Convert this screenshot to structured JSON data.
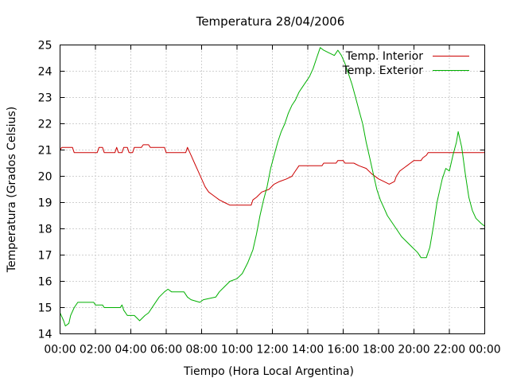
{
  "chart_data": {
    "type": "line",
    "title": "Temperatura 28/04/2006",
    "xlabel": "Tiempo (Hora Local Argentina)",
    "ylabel": "Temperatura (Grados Celsius)",
    "xlim": [
      0,
      24
    ],
    "ylim": [
      14,
      25
    ],
    "x_ticks": [
      "00:00",
      "02:00",
      "04:00",
      "06:00",
      "08:00",
      "10:00",
      "12:00",
      "14:00",
      "16:00",
      "18:00",
      "20:00",
      "22:00",
      "00:00"
    ],
    "y_ticks": [
      "14",
      "15",
      "16",
      "17",
      "18",
      "19",
      "20",
      "21",
      "22",
      "23",
      "24",
      "25"
    ],
    "grid": true,
    "legend_position": "top-right",
    "series": [
      {
        "name": "Temp. Interior",
        "color": "#cc0000",
        "points": [
          [
            0.0,
            21.0
          ],
          [
            0.1,
            21.1
          ],
          [
            0.7,
            21.1
          ],
          [
            0.8,
            20.9
          ],
          [
            2.1,
            20.9
          ],
          [
            2.2,
            21.1
          ],
          [
            2.4,
            21.1
          ],
          [
            2.5,
            20.9
          ],
          [
            3.1,
            20.9
          ],
          [
            3.2,
            21.1
          ],
          [
            3.3,
            20.9
          ],
          [
            3.5,
            20.9
          ],
          [
            3.6,
            21.1
          ],
          [
            3.8,
            21.1
          ],
          [
            3.9,
            20.9
          ],
          [
            4.1,
            20.9
          ],
          [
            4.2,
            21.1
          ],
          [
            4.6,
            21.1
          ],
          [
            4.7,
            21.2
          ],
          [
            5.0,
            21.2
          ],
          [
            5.1,
            21.1
          ],
          [
            5.9,
            21.1
          ],
          [
            6.0,
            20.9
          ],
          [
            7.1,
            20.9
          ],
          [
            7.2,
            21.1
          ],
          [
            7.4,
            20.8
          ],
          [
            7.6,
            20.5
          ],
          [
            7.8,
            20.2
          ],
          [
            8.0,
            19.9
          ],
          [
            8.2,
            19.6
          ],
          [
            8.4,
            19.4
          ],
          [
            8.6,
            19.3
          ],
          [
            8.8,
            19.2
          ],
          [
            9.0,
            19.1
          ],
          [
            9.3,
            19.0
          ],
          [
            9.6,
            18.9
          ],
          [
            9.9,
            18.9
          ],
          [
            10.8,
            18.9
          ],
          [
            10.9,
            19.1
          ],
          [
            11.1,
            19.2
          ],
          [
            11.4,
            19.4
          ],
          [
            11.8,
            19.5
          ],
          [
            12.1,
            19.7
          ],
          [
            12.4,
            19.8
          ],
          [
            12.8,
            19.9
          ],
          [
            13.1,
            20.0
          ],
          [
            13.3,
            20.2
          ],
          [
            13.5,
            20.4
          ],
          [
            14.8,
            20.4
          ],
          [
            14.9,
            20.5
          ],
          [
            15.6,
            20.5
          ],
          [
            15.7,
            20.6
          ],
          [
            16.0,
            20.6
          ],
          [
            16.1,
            20.5
          ],
          [
            16.6,
            20.5
          ],
          [
            16.9,
            20.4
          ],
          [
            17.3,
            20.3
          ],
          [
            17.6,
            20.1
          ],
          [
            18.0,
            19.9
          ],
          [
            18.3,
            19.8
          ],
          [
            18.6,
            19.7
          ],
          [
            18.9,
            19.8
          ],
          [
            19.0,
            20.0
          ],
          [
            19.2,
            20.2
          ],
          [
            19.4,
            20.3
          ],
          [
            19.6,
            20.4
          ],
          [
            19.8,
            20.5
          ],
          [
            20.0,
            20.6
          ],
          [
            20.4,
            20.6
          ],
          [
            20.5,
            20.7
          ],
          [
            20.7,
            20.8
          ],
          [
            20.8,
            20.9
          ],
          [
            21.0,
            20.9
          ],
          [
            24.0,
            20.9
          ]
        ]
      },
      {
        "name": "Temp. Exterior",
        "color": "#00b000",
        "points": [
          [
            0.0,
            14.8
          ],
          [
            0.2,
            14.5
          ],
          [
            0.3,
            14.3
          ],
          [
            0.5,
            14.4
          ],
          [
            0.6,
            14.7
          ],
          [
            0.8,
            15.0
          ],
          [
            1.0,
            15.2
          ],
          [
            1.9,
            15.2
          ],
          [
            2.0,
            15.1
          ],
          [
            2.4,
            15.1
          ],
          [
            2.5,
            15.0
          ],
          [
            3.4,
            15.0
          ],
          [
            3.5,
            15.1
          ],
          [
            3.6,
            14.9
          ],
          [
            3.8,
            14.7
          ],
          [
            4.2,
            14.7
          ],
          [
            4.5,
            14.5
          ],
          [
            4.8,
            14.7
          ],
          [
            5.0,
            14.8
          ],
          [
            5.3,
            15.1
          ],
          [
            5.6,
            15.4
          ],
          [
            5.9,
            15.6
          ],
          [
            6.1,
            15.7
          ],
          [
            6.3,
            15.6
          ],
          [
            7.0,
            15.6
          ],
          [
            7.2,
            15.4
          ],
          [
            7.4,
            15.3
          ],
          [
            7.9,
            15.2
          ],
          [
            8.1,
            15.3
          ],
          [
            8.8,
            15.4
          ],
          [
            9.0,
            15.6
          ],
          [
            9.3,
            15.8
          ],
          [
            9.6,
            16.0
          ],
          [
            10.0,
            16.1
          ],
          [
            10.3,
            16.3
          ],
          [
            10.6,
            16.7
          ],
          [
            10.9,
            17.2
          ],
          [
            11.1,
            17.8
          ],
          [
            11.3,
            18.5
          ],
          [
            11.5,
            19.1
          ],
          [
            11.7,
            19.6
          ],
          [
            11.9,
            20.3
          ],
          [
            12.1,
            20.8
          ],
          [
            12.3,
            21.3
          ],
          [
            12.5,
            21.7
          ],
          [
            12.7,
            22.0
          ],
          [
            12.9,
            22.4
          ],
          [
            13.1,
            22.7
          ],
          [
            13.3,
            22.9
          ],
          [
            13.5,
            23.2
          ],
          [
            13.7,
            23.4
          ],
          [
            13.9,
            23.6
          ],
          [
            14.1,
            23.8
          ],
          [
            14.3,
            24.1
          ],
          [
            14.5,
            24.5
          ],
          [
            14.7,
            24.9
          ],
          [
            14.9,
            24.8
          ],
          [
            15.2,
            24.7
          ],
          [
            15.5,
            24.6
          ],
          [
            15.7,
            24.8
          ],
          [
            15.9,
            24.6
          ],
          [
            16.1,
            24.3
          ],
          [
            16.3,
            23.9
          ],
          [
            16.5,
            23.5
          ],
          [
            16.7,
            23.0
          ],
          [
            16.9,
            22.5
          ],
          [
            17.1,
            22.0
          ],
          [
            17.3,
            21.3
          ],
          [
            17.5,
            20.7
          ],
          [
            17.7,
            20.1
          ],
          [
            17.9,
            19.5
          ],
          [
            18.1,
            19.1
          ],
          [
            18.3,
            18.8
          ],
          [
            18.5,
            18.5
          ],
          [
            18.8,
            18.2
          ],
          [
            19.0,
            18.0
          ],
          [
            19.3,
            17.7
          ],
          [
            19.6,
            17.5
          ],
          [
            19.9,
            17.3
          ],
          [
            20.2,
            17.1
          ],
          [
            20.4,
            16.9
          ],
          [
            20.7,
            16.9
          ],
          [
            20.9,
            17.3
          ],
          [
            21.1,
            18.1
          ],
          [
            21.3,
            19.0
          ],
          [
            21.6,
            19.9
          ],
          [
            21.8,
            20.3
          ],
          [
            22.0,
            20.2
          ],
          [
            22.2,
            20.8
          ],
          [
            22.4,
            21.3
          ],
          [
            22.5,
            21.7
          ],
          [
            22.7,
            21.1
          ],
          [
            22.9,
            20.1
          ],
          [
            23.1,
            19.2
          ],
          [
            23.3,
            18.7
          ],
          [
            23.5,
            18.4
          ],
          [
            23.8,
            18.2
          ],
          [
            24.0,
            18.1
          ]
        ]
      }
    ]
  }
}
